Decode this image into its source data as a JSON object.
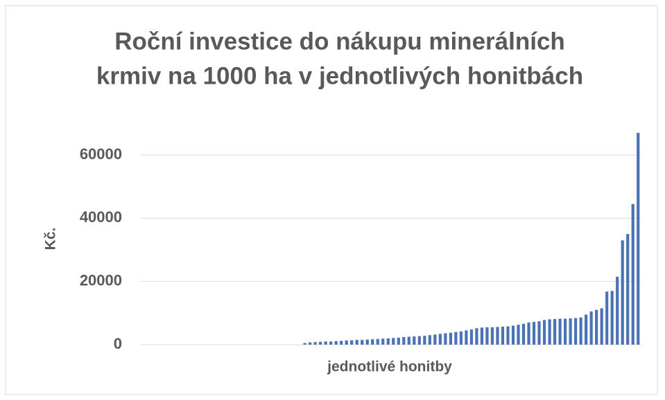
{
  "chart_data": {
    "type": "bar",
    "title": [
      "Roční investice do nákupu minerálních",
      "krmiv na 1000 ha v jednotlivých honitbách"
    ],
    "y_label": "Kč.",
    "x_label": "jednotlivé honitby",
    "categories": [
      null,
      null,
      null,
      null,
      null,
      null,
      null,
      null,
      null,
      null,
      null,
      null,
      null,
      null,
      null,
      null,
      null,
      null,
      null,
      null,
      null,
      null,
      null,
      null,
      null,
      null,
      null,
      null,
      null,
      null,
      null,
      null,
      null,
      null,
      null,
      null,
      null,
      null,
      null,
      null,
      null,
      null,
      null,
      null,
      null,
      null,
      null,
      null,
      null,
      null,
      null,
      null,
      null,
      null,
      null,
      null,
      null,
      null,
      null,
      null,
      null,
      null,
      null,
      null,
      null,
      null,
      null,
      null,
      null,
      null,
      null,
      null,
      null,
      null,
      null,
      null,
      null,
      null,
      null,
      null,
      null,
      null,
      null,
      null,
      null,
      null,
      null,
      null,
      null,
      null,
      null,
      null,
      null,
      null,
      null,
      null
    ],
    "values": [
      0,
      0,
      0,
      0,
      0,
      0,
      0,
      0,
      0,
      0,
      0,
      0,
      0,
      0,
      0,
      0,
      0,
      0,
      0,
      0,
      0,
      0,
      0,
      0,
      0,
      0,
      0,
      0,
      0,
      0,
      0,
      500,
      700,
      800,
      900,
      1000,
      1000,
      1100,
      1200,
      1300,
      1400,
      1500,
      1500,
      1600,
      1700,
      1800,
      1900,
      2000,
      2100,
      2200,
      2400,
      2500,
      2600,
      2700,
      2800,
      3000,
      3200,
      3400,
      3600,
      3800,
      4000,
      4200,
      4500,
      4800,
      5200,
      5400,
      5500,
      5500,
      5600,
      5700,
      5800,
      6000,
      6300,
      6600,
      7000,
      7200,
      7400,
      7800,
      8000,
      8100,
      8200,
      8200,
      8300,
      8400,
      8600,
      9500,
      10500,
      11000,
      11500,
      16800,
      17000,
      21500,
      33000,
      35000,
      44500,
      67000
    ],
    "color": "#4a72b5",
    "ylim": [
      0,
      68000
    ],
    "yticks": [
      0,
      20000,
      40000,
      60000
    ],
    "grid": true
  }
}
